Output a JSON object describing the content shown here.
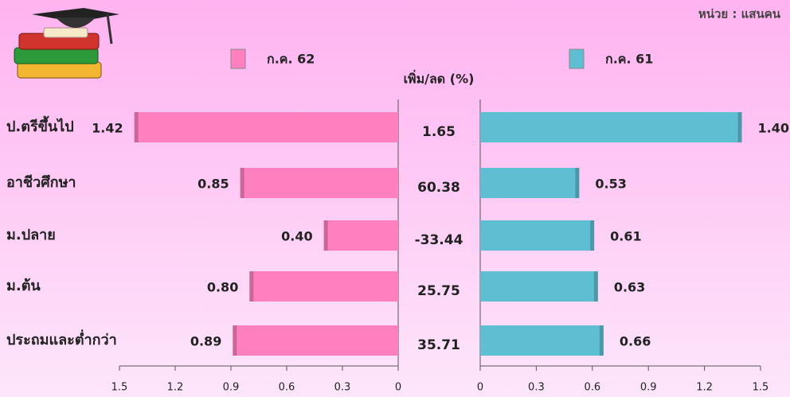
{
  "chart_data": {
    "type": "butterfly",
    "unit": "หน่วย : แสนคน",
    "categories": [
      "ป.ตรีขึ้นไป",
      "อาชีวศึกษา",
      "ม.ปลาย",
      "ม.ต้น",
      "ประถมและต่ำกว่า"
    ],
    "series": [
      {
        "name": "ก.ค. 62",
        "color": "#ff7fbf",
        "values": [
          1.42,
          0.85,
          0.4,
          0.8,
          0.89
        ],
        "value_labels": [
          "1.42",
          "0.85",
          "0.40",
          "0.80",
          "0.89"
        ],
        "label_colors": [
          "#2e7d32",
          "#222",
          "#222",
          "#222",
          "#222"
        ]
      },
      {
        "name": "ก.ค. 61",
        "color": "#5fbfd2",
        "values": [
          1.4,
          0.53,
          0.61,
          0.63,
          0.66
        ],
        "value_labels": [
          "1.40",
          "0.53",
          "0.61",
          "0.63",
          "0.66"
        ],
        "label_colors": [
          "#2e7d32",
          "#222",
          "#222",
          "#222",
          "#222"
        ]
      }
    ],
    "change_title": "เพิ่ม/ลด (%)",
    "change": [
      1.65,
      60.38,
      -33.44,
      25.75,
      35.71
    ],
    "change_colors": [
      "#222",
      "#2e7d32",
      "#e00000",
      "#222",
      "#222"
    ],
    "xlim": [
      0,
      1.5
    ],
    "xticks": [
      0,
      0.3,
      0.6,
      0.9,
      1.2,
      1.5
    ]
  }
}
